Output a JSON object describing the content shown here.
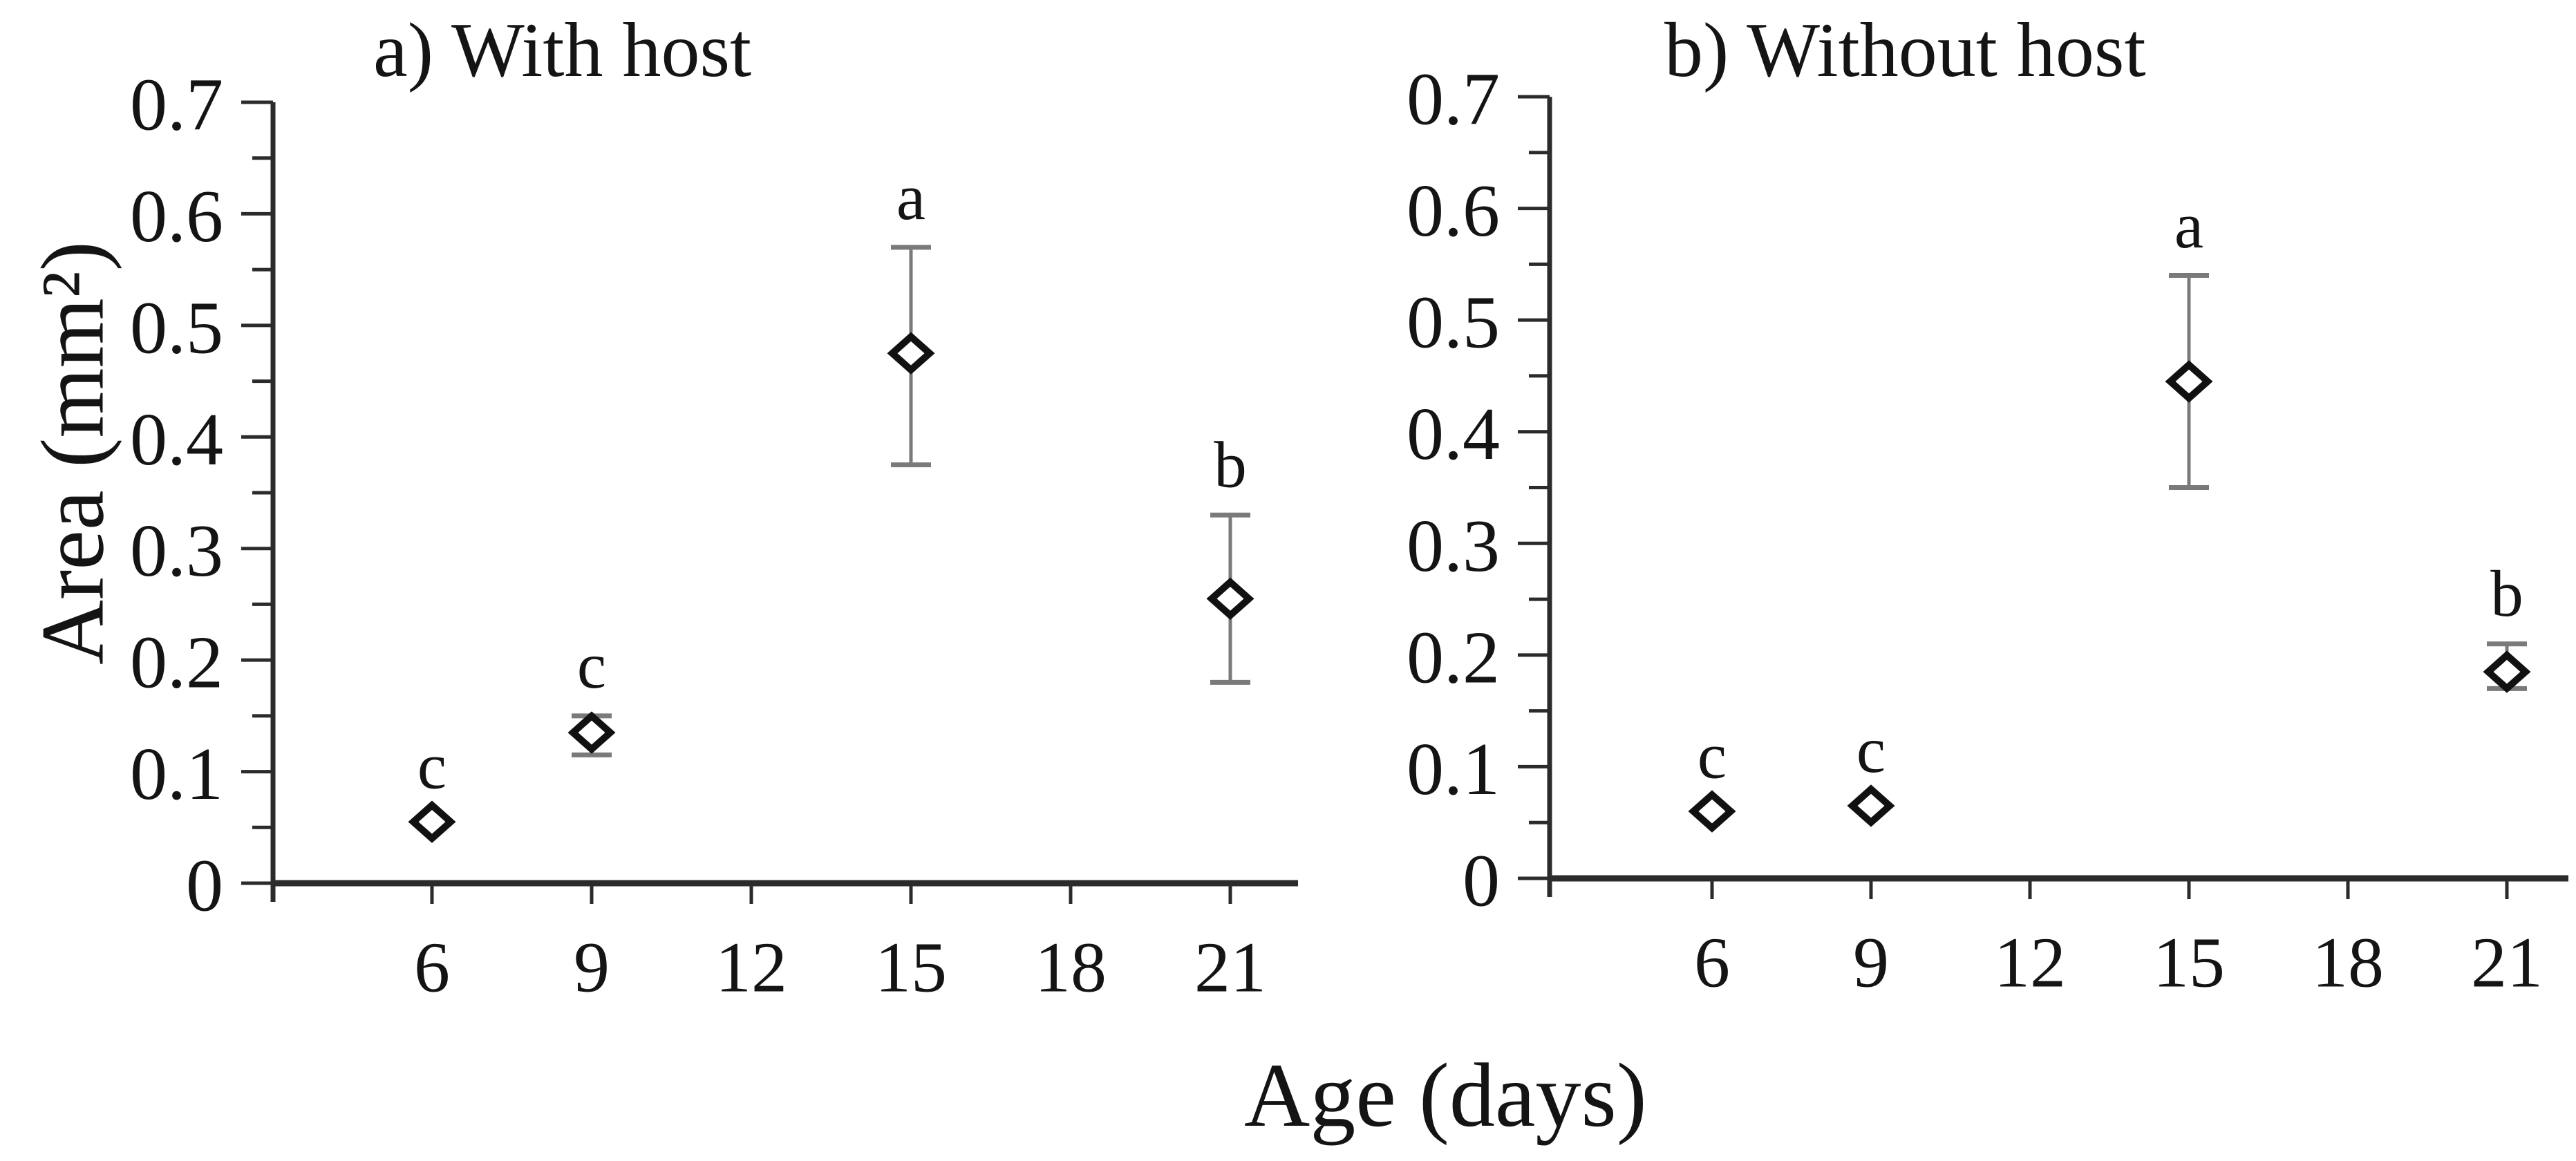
{
  "figure": {
    "x_axis_label": "Age (days)",
    "y_axis_label": "Area (mm²)"
  },
  "colors": {
    "background": "#ffffff",
    "axis": "#2b2b2b",
    "text": "#141414",
    "marker_stroke": "#111111",
    "marker_fill": "#ffffff",
    "error_bar": "#7a7a7a"
  },
  "chart_data": [
    {
      "type": "scatter",
      "panel": "a",
      "title": "a) With host",
      "xlabel": "Age (days)",
      "ylabel": "Area (mm²)",
      "marker": "open-diamond",
      "grid": false,
      "legend": "none",
      "xlim": [
        2.9,
        22.2
      ],
      "ylim": [
        0,
        0.7
      ],
      "x_ticks": [
        6,
        9,
        12,
        15,
        18,
        21
      ],
      "y_tick_labels": [
        "0",
        "0.1",
        "0.2",
        "0.3",
        "0.4",
        "0.5",
        "0.6",
        "0.7"
      ],
      "y_tick_step": 0.1,
      "y_minor_tick_step": 0.05,
      "x": [
        6,
        9,
        15,
        21
      ],
      "y": [
        0.055,
        0.135,
        0.475,
        0.255
      ],
      "error_low": [
        null,
        0.115,
        0.375,
        0.18
      ],
      "error_high": [
        null,
        0.15,
        0.57,
        0.33
      ],
      "point_labels": [
        "c",
        "c",
        "a",
        "b"
      ]
    },
    {
      "type": "scatter",
      "panel": "b",
      "title": "b) Without host",
      "xlabel": "Age (days)",
      "ylabel": "Area (mm²)",
      "marker": "open-diamond",
      "grid": false,
      "legend": "none",
      "xlim": [
        2.9,
        22.2
      ],
      "ylim": [
        0,
        0.7
      ],
      "x_ticks": [
        6,
        9,
        12,
        15,
        18,
        21
      ],
      "y_tick_labels": [
        "0",
        "0.1",
        "0.2",
        "0.3",
        "0.4",
        "0.5",
        "0.6",
        "0.7"
      ],
      "y_tick_step": 0.1,
      "y_minor_tick_step": 0.05,
      "x": [
        6,
        9,
        15,
        21
      ],
      "y": [
        0.06,
        0.065,
        0.445,
        0.185
      ],
      "error_low": [
        null,
        null,
        0.35,
        0.17
      ],
      "error_high": [
        null,
        null,
        0.54,
        0.21
      ],
      "point_labels": [
        "c",
        "c",
        "a",
        "b"
      ]
    }
  ]
}
